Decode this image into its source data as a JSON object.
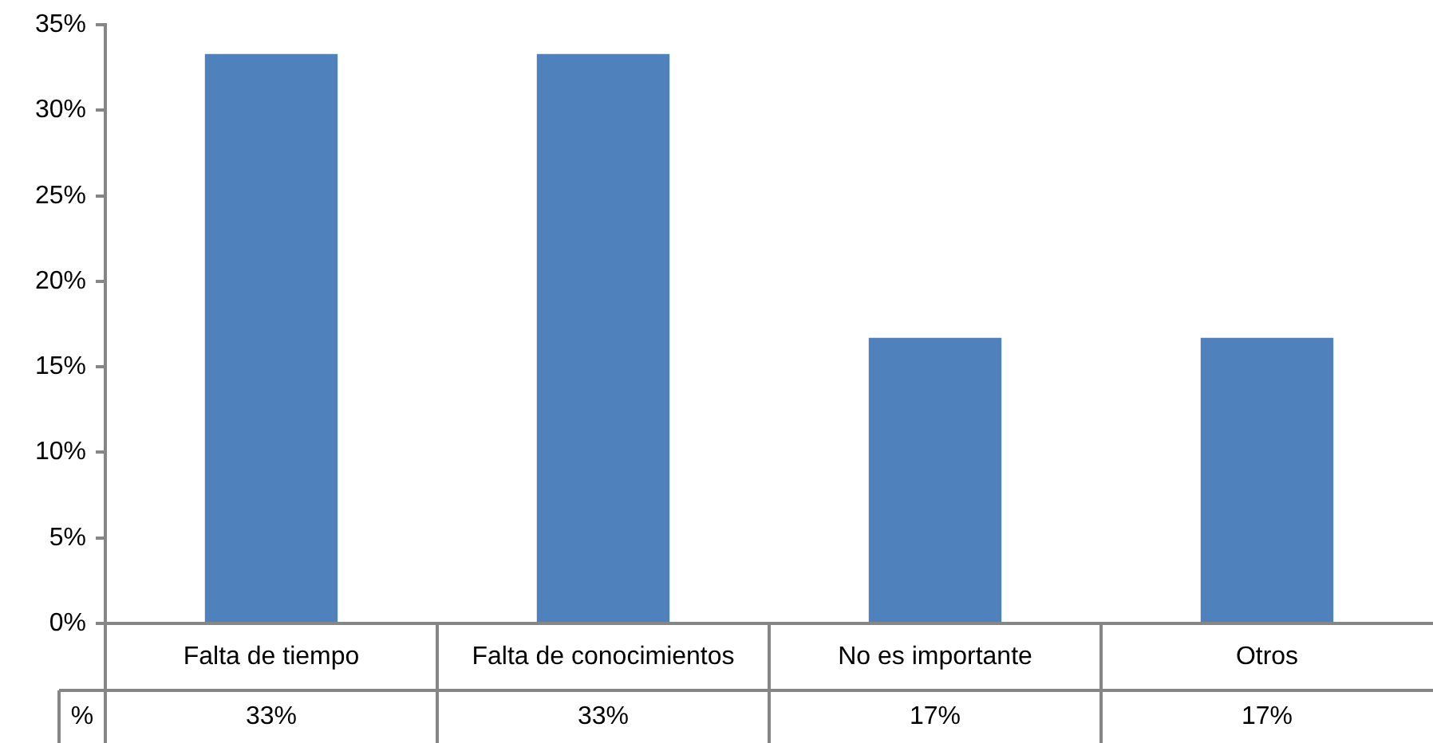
{
  "chart_data": {
    "type": "bar",
    "categories": [
      "Falta de tiempo",
      "Falta de conocimientos",
      "No es importante",
      "Otros"
    ],
    "series": [
      {
        "name": "%",
        "color": "#4f81bd",
        "values": [
          33.3,
          33.3,
          16.7,
          16.7
        ],
        "value_labels": [
          "33%",
          "33%",
          "17%",
          "17%"
        ]
      }
    ],
    "ylim": [
      0,
      35
    ],
    "yticks": [
      {
        "value": 0,
        "label": "0%"
      },
      {
        "value": 5,
        "label": "5%"
      },
      {
        "value": 10,
        "label": "10%"
      },
      {
        "value": 15,
        "label": "15%"
      },
      {
        "value": 20,
        "label": "20%"
      },
      {
        "value": 25,
        "label": "25%"
      },
      {
        "value": 30,
        "label": "30%"
      },
      {
        "value": 35,
        "label": "35%"
      }
    ],
    "grid": false,
    "legend": false
  }
}
